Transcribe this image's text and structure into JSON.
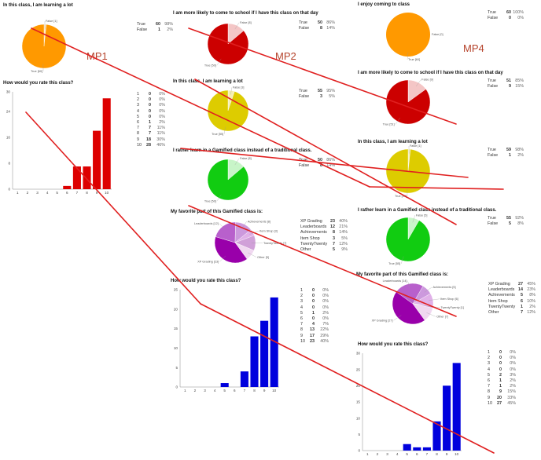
{
  "mp_labels": [
    "MP1",
    "MP2",
    "MP4"
  ],
  "colors": {
    "orange": "#ff9900",
    "red": "#cc0000",
    "yellow": "#ddcc00",
    "green": "#11cc11",
    "light_pink": "#f4c6c6",
    "light_yellow": "#f5efb0",
    "light_green": "#c8f5c8",
    "light_orange": "#ffe0b0",
    "bar_red": "#dd0000",
    "bar_blue": "#0000dd",
    "overlay_line": "#e02020"
  },
  "chart_data": [
    {
      "id": "mp1_learning",
      "type": "pie",
      "title": "In this class, I am learning a lot",
      "slices": [
        {
          "label": "True [60]",
          "name": "True",
          "count": 60,
          "pct": "98%"
        },
        {
          "label": "False [1]",
          "name": "False",
          "count": 1,
          "pct": "2%"
        }
      ]
    },
    {
      "id": "mp1_rating",
      "type": "bar",
      "title": "How would you rate this class?",
      "categories": [
        "1",
        "2",
        "3",
        "4",
        "5",
        "6",
        "7",
        "8",
        "9",
        "10"
      ],
      "values": [
        0,
        0,
        0,
        0,
        0,
        1,
        7,
        7,
        18,
        28
      ],
      "pcts": [
        "0%",
        "0%",
        "0%",
        "0%",
        "0%",
        "2%",
        "11%",
        "11%",
        "30%",
        "46%"
      ],
      "ylim": [
        0,
        30
      ],
      "yticks": [
        0,
        8,
        16,
        24,
        30
      ]
    },
    {
      "id": "mp2_attend",
      "type": "pie",
      "title": "I am more likely to come to school if I have this class on that day",
      "slices": [
        {
          "label": "True [50]",
          "name": "True",
          "count": 50,
          "pct": "86%"
        },
        {
          "label": "False [8]",
          "name": "False",
          "count": 8,
          "pct": "14%"
        }
      ]
    },
    {
      "id": "mp2_learning",
      "type": "pie",
      "title": "In this class, I am learning a lot",
      "slices": [
        {
          "label": "True [55]",
          "name": "True",
          "count": 55,
          "pct": "95%"
        },
        {
          "label": "False [3]",
          "name": "False",
          "count": 3,
          "pct": "5%"
        }
      ]
    },
    {
      "id": "mp2_gamified",
      "type": "pie",
      "title": "I rather learn in a Gamified class instead of a traditional class.",
      "slices": [
        {
          "label": "True [50]",
          "name": "True",
          "count": 50,
          "pct": "86%"
        },
        {
          "label": "False [8]",
          "name": "False",
          "count": 8,
          "pct": "14%"
        }
      ]
    },
    {
      "id": "mp2_favorite",
      "type": "pie",
      "title": "My favorite part of this Gamified class is:",
      "slices": [
        {
          "label": "XP Grading [23]",
          "name": "XP Grading",
          "count": 23,
          "pct": "40%"
        },
        {
          "label": "Leaderboards [12]",
          "name": "Leaderboards",
          "count": 12,
          "pct": "21%"
        },
        {
          "label": "Achievements [8]",
          "name": "Achievements",
          "count": 8,
          "pct": "14%"
        },
        {
          "label": "Item Shop [3]",
          "name": "Item Shop",
          "count": 3,
          "pct": "5%"
        },
        {
          "label": "TwentyTwenty [7]",
          "name": "TwentyTwenty",
          "count": 7,
          "pct": "12%"
        },
        {
          "label": "Other [5]",
          "name": "Other",
          "count": 5,
          "pct": "9%"
        }
      ]
    },
    {
      "id": "mp2_rating",
      "type": "bar",
      "title": "How would you rate this class?",
      "categories": [
        "1",
        "2",
        "3",
        "4",
        "5",
        "6",
        "7",
        "8",
        "9",
        "10"
      ],
      "values": [
        0,
        0,
        0,
        0,
        1,
        0,
        4,
        13,
        17,
        23
      ],
      "pcts": [
        "0%",
        "0%",
        "0%",
        "0%",
        "2%",
        "0%",
        "7%",
        "22%",
        "29%",
        "40%"
      ],
      "ylim": [
        0,
        25
      ],
      "yticks": [
        0,
        5,
        10,
        15,
        20,
        25
      ]
    },
    {
      "id": "mp4_enjoy",
      "type": "pie",
      "title": "I enjoy coming to class",
      "slices": [
        {
          "label": "True [60]",
          "name": "True",
          "count": 60,
          "pct": "100%"
        },
        {
          "label": "False [0]",
          "name": "False",
          "count": 0,
          "pct": "0%"
        }
      ]
    },
    {
      "id": "mp4_attend",
      "type": "pie",
      "title": "I am more likely to come to school if I have this class on that day",
      "slices": [
        {
          "label": "True [51]",
          "name": "True",
          "count": 51,
          "pct": "85%"
        },
        {
          "label": "False [9]",
          "name": "False",
          "count": 9,
          "pct": "15%"
        }
      ]
    },
    {
      "id": "mp4_learning",
      "type": "pie",
      "title": "In this class, I am learning a lot",
      "slices": [
        {
          "label": "True [59]",
          "name": "True",
          "count": 59,
          "pct": "98%"
        },
        {
          "label": "False [1]",
          "name": "False",
          "count": 1,
          "pct": "2%"
        }
      ]
    },
    {
      "id": "mp4_gamified",
      "type": "pie",
      "title": "I rather learn in a Gamified class instead of a traditional class.",
      "slices": [
        {
          "label": "True [55]",
          "name": "True",
          "count": 55,
          "pct": "92%"
        },
        {
          "label": "False [5]",
          "name": "False",
          "count": 5,
          "pct": "8%"
        }
      ]
    },
    {
      "id": "mp4_favorite",
      "type": "pie",
      "title": "My favorite part of this Gamified class is:",
      "slices": [
        {
          "label": "XP Grading [27]",
          "name": "XP Grading",
          "count": 27,
          "pct": "45%"
        },
        {
          "label": "Leaderboards [14]",
          "name": "Leaderboards",
          "count": 14,
          "pct": "23%"
        },
        {
          "label": "Achievements [5]",
          "name": "Achievements",
          "count": 5,
          "pct": "8%"
        },
        {
          "label": "Item Shop [6]",
          "name": "Item Shop",
          "count": 6,
          "pct": "10%"
        },
        {
          "label": "TwentyTwenty [1]",
          "name": "TwentyTwenty",
          "count": 1,
          "pct": "2%"
        },
        {
          "label": "Other [7]",
          "name": "Other",
          "count": 7,
          "pct": "12%"
        }
      ]
    },
    {
      "id": "mp4_rating",
      "type": "bar",
      "title": "How would you rate this class?",
      "categories": [
        "1",
        "2",
        "3",
        "4",
        "5",
        "6",
        "7",
        "8",
        "9",
        "10"
      ],
      "values": [
        0,
        0,
        0,
        0,
        2,
        1,
        1,
        9,
        20,
        27
      ],
      "pcts": [
        "0%",
        "0%",
        "0%",
        "0%",
        "3%",
        "2%",
        "2%",
        "15%",
        "33%",
        "45%"
      ],
      "ylim": [
        0,
        30
      ],
      "yticks": [
        0,
        5,
        10,
        15,
        20,
        25,
        30
      ]
    }
  ]
}
